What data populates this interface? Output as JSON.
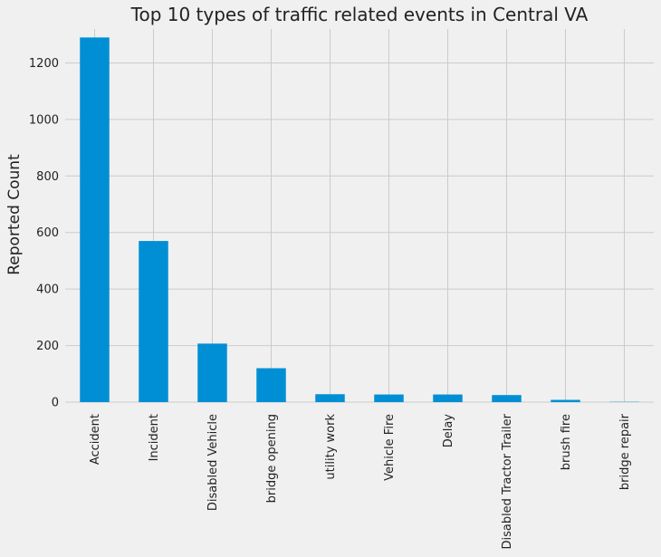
{
  "chart_data": {
    "type": "bar",
    "title": "Top 10 types of traffic related events in Central VA",
    "xlabel": "",
    "ylabel": "Reported Count",
    "categories": [
      "Accident",
      "Incident",
      "Disabled Vehicle",
      "bridge opening",
      "utility work",
      "Vehicle Fire",
      "Delay",
      "Disabled Tractor Trailer",
      "brush fire",
      "bridge repair"
    ],
    "values": [
      1290,
      570,
      207,
      120,
      28,
      27,
      27,
      25,
      8,
      1
    ],
    "ylim": [
      0,
      1320
    ],
    "yticks": [
      0,
      200,
      400,
      600,
      800,
      1000,
      1200
    ],
    "grid": true,
    "bar_color": "#008fd5",
    "background": "#f0f0f0",
    "grid_color": "#cbcbcb"
  }
}
